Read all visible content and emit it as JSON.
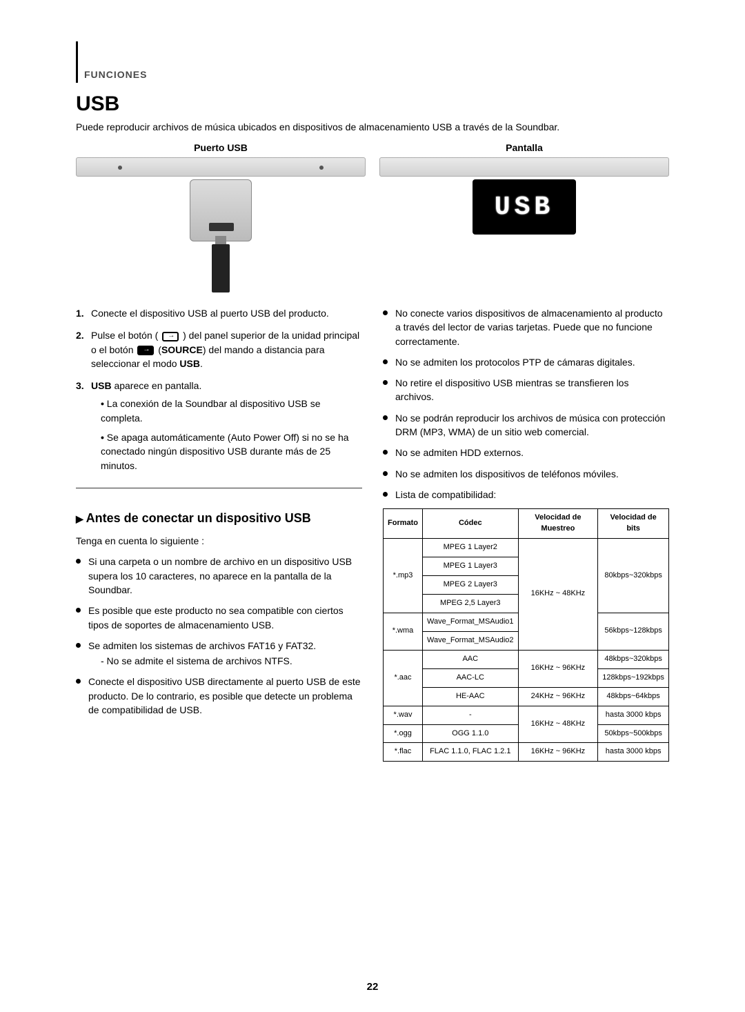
{
  "header_section": "FUNCIONES",
  "main_title": "USB",
  "intro_text": "Puede reproducir archivos de música ubicados en dispositivos de almacenamiento USB a través de la Soundbar.",
  "img1_label": "Puerto USB",
  "img2_label": "Pantalla",
  "display_text": "USB",
  "steps": {
    "s1_n": "1.",
    "s1_t": "Conecte el dispositivo USB al puerto USB del producto.",
    "s2_n": "2.",
    "s2_t1": "Pulse el botón (",
    "s2_t2": ") del panel superior de la unidad principal o el botón",
    "s2_t3": "(",
    "s2_source": "SOURCE",
    "s2_t4": ") del mando a distancia para seleccionar el modo ",
    "s2_usb": "USB",
    "s2_t5": ".",
    "s3_n": "3.",
    "s3_pre": "USB",
    "s3_t": " aparece en pantalla.",
    "s3_sub1": "La conexión de la Soundbar al dispositivo USB se completa.",
    "s3_sub2": "Se apaga automáticamente (Auto Power Off) si no se ha conectado ningún dispositivo USB durante más de 25 minutos."
  },
  "subhead": "Antes de conectar un dispositivo USB",
  "sub_intro": "Tenga en cuenta lo siguiente :",
  "notes_left": {
    "n1": "Si una carpeta o un nombre de archivo en un dispositivo USB supera los 10 caracteres, no aparece en la pantalla de la Soundbar.",
    "n2": "Es posible que este producto no sea compatible con ciertos tipos de soportes de almacenamiento USB.",
    "n3": "Se admiten los sistemas de archivos FAT16 y FAT32.",
    "n3_sub": "- No se admite el sistema de archivos NTFS.",
    "n4": "Conecte el dispositivo USB directamente al puerto USB de este producto. De lo contrario, es posible que detecte un problema de compatibilidad de USB."
  },
  "notes_right": {
    "n1": "No conecte varios dispositivos de almacenamiento al producto a través del lector de varias tarjetas. Puede que no funcione correctamente.",
    "n2": "No se admiten los protocolos PTP de cámaras digitales.",
    "n3": "No retire el dispositivo USB mientras se transfieren los archivos.",
    "n4": "No se podrán reproducir los archivos de música con protección DRM (MP3, WMA) de un sitio web comercial.",
    "n5": "No se admiten HDD externos.",
    "n6": "No se admiten los dispositivos de teléfonos móviles.",
    "n7": "Lista de compatibilidad:"
  },
  "table": {
    "h1": "Formato",
    "h2": "Códec",
    "h3": "Velocidad de Muestreo",
    "h4": "Velocidad de bits",
    "mp3_fmt": "*.mp3",
    "mp3_c1": "MPEG 1 Layer2",
    "mp3_c2": "MPEG 1 Layer3",
    "mp3_c3": "MPEG 2 Layer3",
    "mp3_c4": "MPEG 2,5 Layer3",
    "mp3_sr": "16KHz ~ 48KHz",
    "mp3_br": "80kbps~320kbps",
    "wma_fmt": "*.wma",
    "wma_c1": "Wave_Format_MSAudio1",
    "wma_c2": "Wave_Format_MSAudio2",
    "wma_br": "56kbps~128kbps",
    "aac_fmt": "*.aac",
    "aac_c1": "AAC",
    "aac_c2": "AAC-LC",
    "aac_c3": "HE-AAC",
    "aac_sr1": "16KHz ~ 96KHz",
    "aac_sr2": "24KHz ~ 96KHz",
    "aac_br1": "48kbps~320kbps",
    "aac_br2": "128kbps~192kbps",
    "aac_br3": "48kbps~64kbps",
    "wav_fmt": "*.wav",
    "wav_c": "-",
    "wav_sr": "16KHz ~ 48KHz",
    "wav_br": "hasta 3000 kbps",
    "ogg_fmt": "*.ogg",
    "ogg_c": "OGG 1.1.0",
    "ogg_br": "50kbps~500kbps",
    "flac_fmt": "*.flac",
    "flac_c": "FLAC 1.1.0, FLAC 1.2.1",
    "flac_sr": "16KHz ~ 96KHz",
    "flac_br": "hasta 3000 kbps"
  },
  "page_num": "22"
}
